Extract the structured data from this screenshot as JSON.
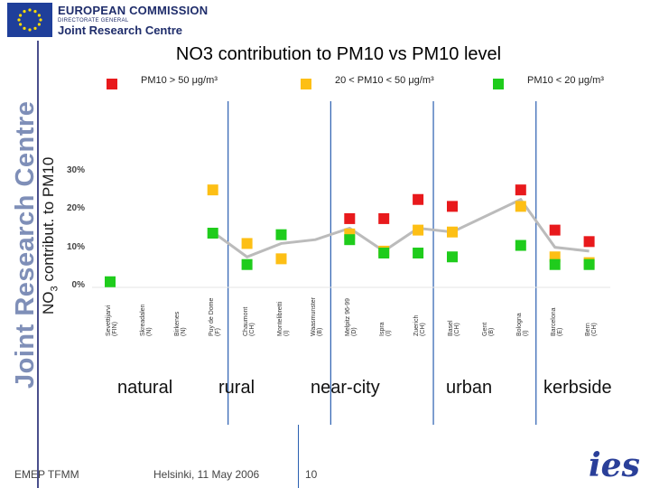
{
  "header": {
    "org": "EUROPEAN COMMISSION",
    "dg": "DIRECTORATE GENERAL",
    "jrc": "Joint Research Centre"
  },
  "side_brand": "Joint Research Centre",
  "title": "NO3 contribution to PM10 vs PM10 level",
  "legend": [
    {
      "label": "PM10 > 50 μg/m³",
      "color": "#e8191c"
    },
    {
      "label": "20 < PM10 < 50 μg/m³",
      "color": "#fdbf15"
    },
    {
      "label": "PM10 < 20 μg/m³",
      "color": "#1fcc1c"
    }
  ],
  "ylabel_main": "NO",
  "ylabel_sub": "3",
  "ylabel_rest": " contribut. to PM10",
  "site_types": [
    "natural",
    "rural",
    "near-city",
    "urban",
    "kerbside"
  ],
  "footer": {
    "left": "EMEP TFMM",
    "center": "Helsinki, 11 May 2006",
    "page": "10",
    "logo": "ies"
  },
  "chart_data": {
    "type": "scatter",
    "title": "NO3 contribution to PM10 vs PM10 level",
    "ylabel": "NO3 contribut. to PM10",
    "xlabel": "",
    "ylim": [
      0,
      30
    ],
    "yticks": [
      "30%",
      "20%",
      "10%",
      "0%"
    ],
    "ytick_values": [
      30,
      20,
      10,
      0
    ],
    "categories": [
      "Sevettijarvi (FIN)",
      "Skreadalen (N)",
      "Birkenes (N)",
      "Puy de Dome (F)",
      "Chaumont (CH)",
      "Montelibretti (I)",
      "Waasmunster (B)",
      "Melpitz 96-99 (D)",
      "Ispra (I)",
      "Zuerich (CH)",
      "Basel (CH)",
      "Gent (B)",
      "Bologna (I)",
      "Barcelona (E)",
      "Bern (CH)"
    ],
    "series": [
      {
        "name": "PM10 > 50 μg/m³",
        "color": "#e8191c",
        "points": [
          {
            "x": 7,
            "y": 17.5
          },
          {
            "x": 8,
            "y": 17.5
          },
          {
            "x": 9,
            "y": 22.5
          },
          {
            "x": 10,
            "y": 20.7
          },
          {
            "x": 12,
            "y": 25
          },
          {
            "x": 13,
            "y": 14.5
          },
          {
            "x": 14,
            "y": 11.5
          }
        ]
      },
      {
        "name": "20 < PM10 < 50 μg/m³",
        "color": "#fdbf15",
        "points": [
          {
            "x": 3,
            "y": 25
          },
          {
            "x": 4,
            "y": 11
          },
          {
            "x": 5,
            "y": 7
          },
          {
            "x": 7,
            "y": 13.5
          },
          {
            "x": 8,
            "y": 9
          },
          {
            "x": 9,
            "y": 14.5
          },
          {
            "x": 10,
            "y": 14
          },
          {
            "x": 12,
            "y": 20.7
          },
          {
            "x": 13,
            "y": 7.5
          },
          {
            "x": 14,
            "y": 6
          }
        ]
      },
      {
        "name": "PM10 < 20 μg/m³",
        "color": "#1fcc1c",
        "points": [
          {
            "x": 0,
            "y": 1
          },
          {
            "x": 3,
            "y": 13.7
          },
          {
            "x": 4,
            "y": 5.5
          },
          {
            "x": 5,
            "y": 13.3
          },
          {
            "x": 7,
            "y": 12
          },
          {
            "x": 8,
            "y": 8.5
          },
          {
            "x": 9,
            "y": 8.5
          },
          {
            "x": 10,
            "y": 7.5
          },
          {
            "x": 12,
            "y": 10.5
          },
          {
            "x": 13,
            "y": 5.5
          },
          {
            "x": 14,
            "y": 5.5
          }
        ]
      }
    ],
    "trend": {
      "name": "mean",
      "color": "#bbbbbb",
      "points": [
        {
          "x": 3,
          "y": 14
        },
        {
          "x": 4,
          "y": 7.5
        },
        {
          "x": 5,
          "y": 11
        },
        {
          "x": 6,
          "y": 12
        },
        {
          "x": 7,
          "y": 15
        },
        {
          "x": 8,
          "y": 9
        },
        {
          "x": 9,
          "y": 15
        },
        {
          "x": 10,
          "y": 14
        },
        {
          "x": 12,
          "y": 22.5
        },
        {
          "x": 13,
          "y": 10
        },
        {
          "x": 14,
          "y": 9
        }
      ]
    },
    "group_dividers_after": [
      3,
      6,
      9,
      12
    ],
    "grid": false,
    "legend_position": "top"
  }
}
